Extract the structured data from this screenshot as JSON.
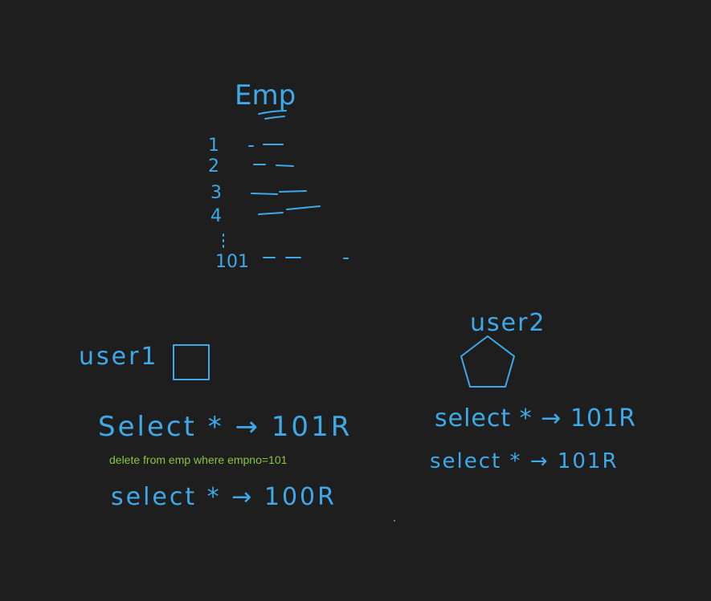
{
  "colors": {
    "background": "#1e1e1e",
    "ink": "#3ea9e8",
    "typed_text": "#8ac43f"
  },
  "emp_table": {
    "title": "Emp",
    "row_ids": [
      "1",
      "2",
      "3",
      "4",
      "101"
    ]
  },
  "user1": {
    "label": "user1",
    "shape": "square"
  },
  "user2": {
    "label": "user2",
    "shape": "pentagon"
  },
  "session1": {
    "query_before": "Select * → 101R",
    "delete_statement": "delete from emp where empno=101",
    "query_after": "select * → 100R"
  },
  "session2": {
    "query_before": "select * → 101R",
    "query_after": "select * → 101R"
  }
}
